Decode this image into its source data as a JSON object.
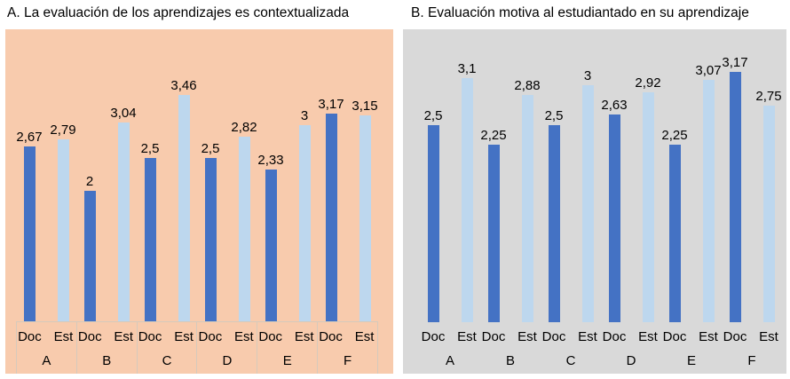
{
  "chart_data": [
    {
      "type": "bar",
      "title": "A. La evaluación de los aprendizajes es contextualizada",
      "panel_background": "#F8CBAD",
      "categories": [
        "A",
        "B",
        "C",
        "D",
        "E",
        "F"
      ],
      "bar_pair_labels": [
        "Doc",
        "Est"
      ],
      "series": [
        {
          "name": "Doc",
          "color": "#4472C4",
          "values": [
            2.67,
            2,
            2.5,
            2.5,
            2.33,
            3.17
          ],
          "labels": [
            "2,67",
            "2",
            "2,5",
            "2,5",
            "2,33",
            "3,17"
          ]
        },
        {
          "name": "Est",
          "color": "#BDD7EE",
          "values": [
            2.79,
            3.04,
            3.46,
            2.82,
            3,
            3.15
          ],
          "labels": [
            "2,79",
            "3,04",
            "3,46",
            "2,82",
            "3",
            "3,15"
          ]
        }
      ],
      "ylim": [
        0,
        3.5
      ],
      "grid": false,
      "legend": "none",
      "data_labels": true,
      "label_band_bordered": true
    },
    {
      "type": "bar",
      "title": "B. Evaluación motiva al estudiantado en su aprendizaje",
      "panel_background": "#D9D9D9",
      "categories": [
        "A",
        "B",
        "C",
        "D",
        "E",
        "F"
      ],
      "bar_pair_labels": [
        "Doc",
        "Est"
      ],
      "series": [
        {
          "name": "Doc",
          "color": "#4472C4",
          "values": [
            2.5,
            2.25,
            2.5,
            2.63,
            2.25,
            3.17
          ],
          "labels": [
            "2,5",
            "2,25",
            "2,5",
            "2,63",
            "2,25",
            "3,17"
          ]
        },
        {
          "name": "Est",
          "color": "#BDD7EE",
          "values": [
            3.1,
            2.88,
            3,
            2.92,
            3.07,
            2.75
          ],
          "labels": [
            "3,1",
            "2,88",
            "3",
            "2,92",
            "3,07",
            "2,75"
          ]
        }
      ],
      "ylim": [
        0,
        3.5
      ],
      "grid": false,
      "legend": "none",
      "data_labels": true,
      "label_band_bordered": false
    }
  ]
}
